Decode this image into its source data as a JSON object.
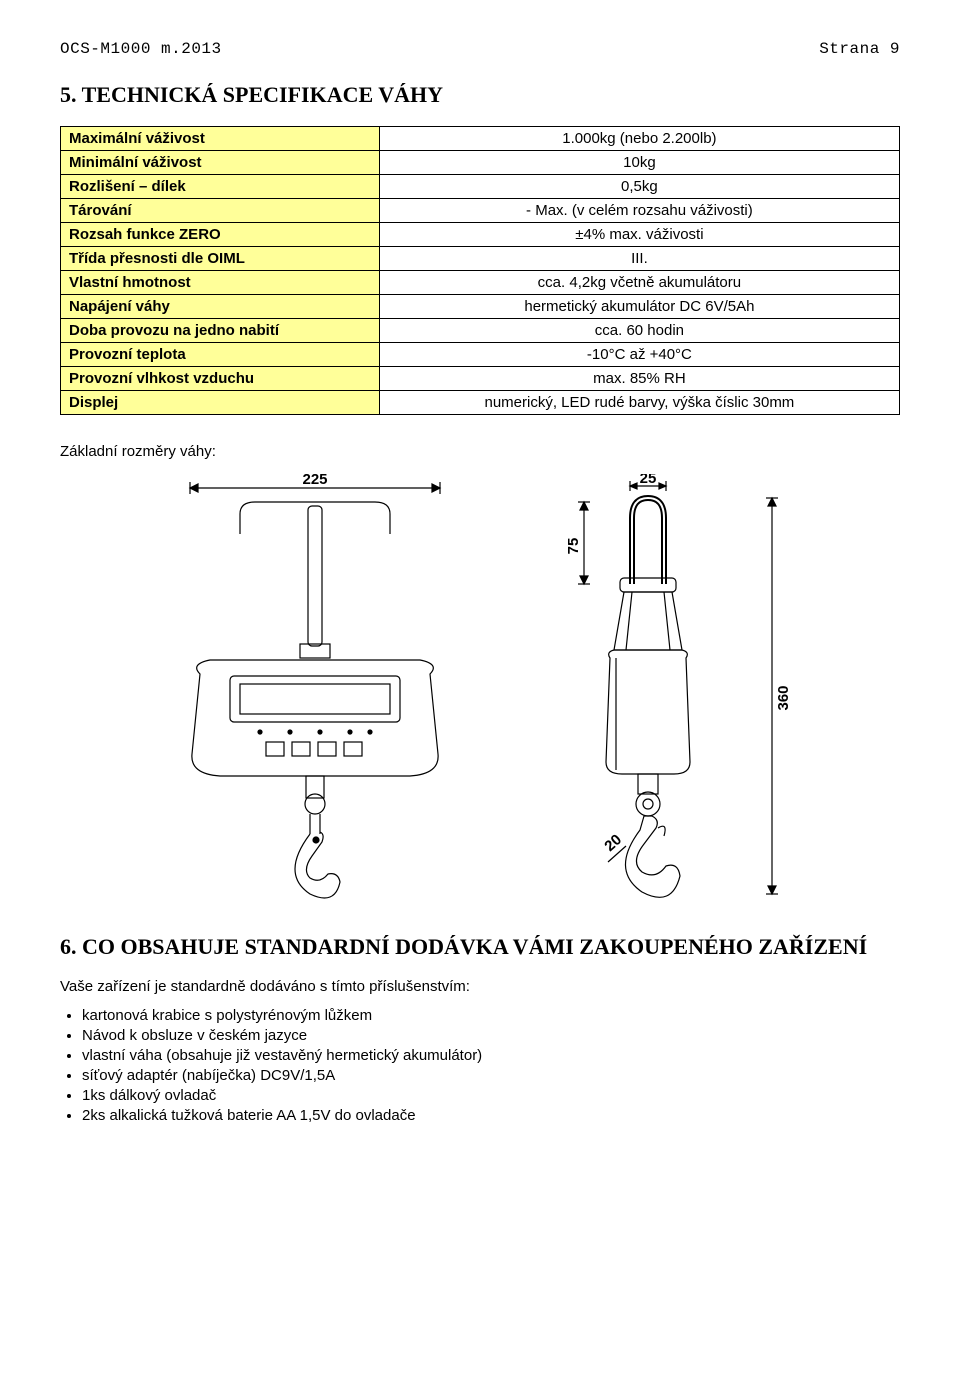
{
  "header": {
    "left": "OCS-M1000 m.2013",
    "right": "Strana 9"
  },
  "section5": {
    "title": "5. TECHNICKÁ SPECIFIKACE VÁHY",
    "rows": [
      {
        "label": "Maximální váživost",
        "value": "1.000kg (nebo 2.200lb)"
      },
      {
        "label": "Minimální váživost",
        "value": "10kg"
      },
      {
        "label": "Rozlišení – dílek",
        "value": "0,5kg"
      },
      {
        "label": "Tárování",
        "value": "- Max. (v celém rozsahu váživosti)"
      },
      {
        "label": "Rozsah funkce ZERO",
        "value": "±4% max. váživosti"
      },
      {
        "label": "Třída přesnosti dle OIML",
        "value": "III."
      },
      {
        "label": "Vlastní hmotnost",
        "value": "cca. 4,2kg včetně akumulátoru"
      },
      {
        "label": "Napájení váhy",
        "value": "hermetický akumulátor DC 6V/5Ah"
      },
      {
        "label": "Doba provozu na jedno nabití",
        "value": "cca. 60 hodin"
      },
      {
        "label": "Provozní teplota",
        "value": "-10°C až +40°C"
      },
      {
        "label": "Provozní vlhkost vzduchu",
        "value": "max. 85% RH"
      },
      {
        "label": "Displej",
        "value": "numerický, LED rudé barvy, výška číslic 30mm"
      }
    ]
  },
  "dims_caption": "Základní rozměry váhy:",
  "dimensions": {
    "front_width": "225",
    "side_top": "25",
    "side_shackle": "75",
    "side_height": "360",
    "side_hook_gap": "20"
  },
  "section6": {
    "title": "6. CO OBSAHUJE STANDARDNÍ DODÁVKA VÁMI ZAKOUPENÉHO ZAŘÍZENÍ",
    "intro": "Vaše zařízení je standardně dodáváno s tímto příslušenstvím:",
    "items": [
      "kartonová krabice s polystyrénovým lůžkem",
      "Návod k obsluze v českém jazyce",
      "vlastní váha (obsahuje již vestavěný hermetický akumulátor)",
      "síťový adaptér (nabíječka) DC9V/1,5A",
      "1ks dálkový ovladač",
      "2ks alkalická tužková baterie AA 1,5V do ovladače"
    ]
  },
  "colors": {
    "row_label_bg": "#ffff99",
    "border": "#000000",
    "text": "#000000",
    "page_bg": "#ffffff"
  }
}
